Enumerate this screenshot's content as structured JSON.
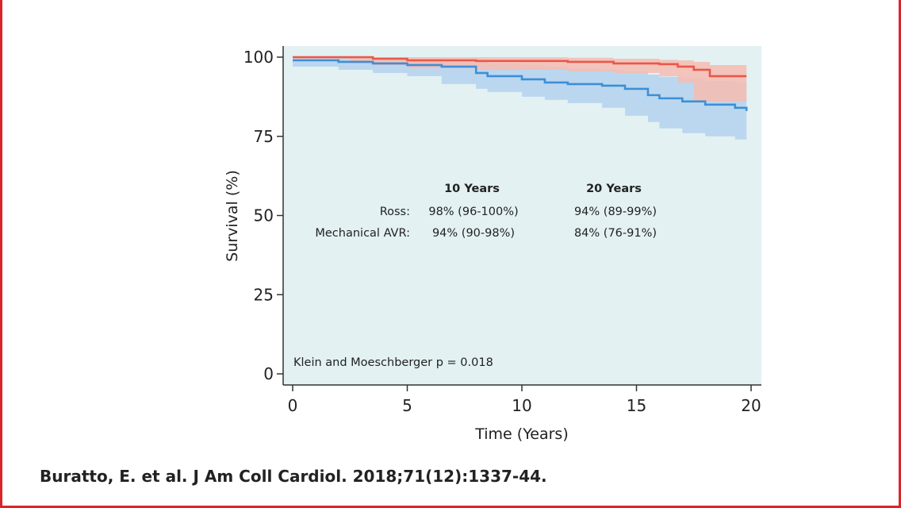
{
  "colors": {
    "frame": "#d9252a",
    "plot_background": "#e3f1f3",
    "ross": "#e8584a",
    "ross_band": "#f6bcb0",
    "mechanical": "#3d8fd6",
    "mechanical_band": "#b6d4ee"
  },
  "chart_data": {
    "type": "line",
    "xlabel": "Time (Years)",
    "ylabel": "Survival (%)",
    "xlim": [
      0,
      20
    ],
    "ylim": [
      0,
      100
    ],
    "x_ticks": [
      "0",
      "5",
      "10",
      "15",
      "20"
    ],
    "y_ticks": [
      "0",
      "25",
      "50",
      "75",
      "100"
    ],
    "grid": false,
    "series": [
      {
        "name": "Ross",
        "color": "#e8584a",
        "x": [
          0,
          2.5,
          3.5,
          5,
          8,
          12,
          14,
          16,
          16.8,
          17.5,
          18.2,
          19.8
        ],
        "y": [
          100,
          100,
          99.5,
          99,
          98.8,
          98.5,
          98,
          97.8,
          97,
          96,
          94,
          94
        ],
        "ci_upper": [
          100,
          100,
          100,
          100,
          100,
          99.8,
          99.5,
          99.2,
          99,
          98.5,
          97.5,
          97.5
        ],
        "ci_lower": [
          100,
          99.5,
          98,
          97.5,
          96.5,
          96,
          95.5,
          95,
          94,
          92,
          86,
          86
        ]
      },
      {
        "name": "Mechanical AVR",
        "color": "#3d8fd6",
        "x": [
          0,
          2,
          3.5,
          5,
          6.5,
          8,
          8.5,
          10,
          11,
          12,
          13.5,
          14.5,
          15.5,
          16,
          17,
          18,
          19.3,
          19.8
        ],
        "y": [
          99,
          98.5,
          98,
          97.5,
          97,
          95,
          94,
          93,
          92,
          91.5,
          91,
          90,
          88,
          87,
          86,
          85,
          84,
          83
        ],
        "ci_upper": [
          100,
          100,
          99.8,
          99.5,
          99,
          98.5,
          98,
          97.5,
          97,
          96.5,
          96,
          95.5,
          94.5,
          93.8,
          93.3,
          92.5,
          92,
          92
        ],
        "ci_lower": [
          98,
          97,
          96,
          95,
          94,
          91.5,
          90,
          89,
          87.5,
          86.5,
          85.5,
          84,
          81.5,
          79.5,
          77.5,
          76,
          75,
          74
        ]
      }
    ],
    "annotations": {
      "header_10": "10 Years",
      "header_20": "20 Years",
      "rows": [
        {
          "label": "Ross:",
          "color": "#e8584a",
          "v10": "98% (96-100%)",
          "v20": "94% (89-99%)"
        },
        {
          "label": "Mechanical AVR:",
          "color": "#3d8fd6",
          "v10": "94% (90-98%)",
          "v20": "84% (76-91%)"
        }
      ],
      "pvalue": "Klein and Moeschberger p = 0.018"
    }
  },
  "citation": "Buratto, E. et al. J Am Coll Cardiol. 2018;71(12):1337-44."
}
